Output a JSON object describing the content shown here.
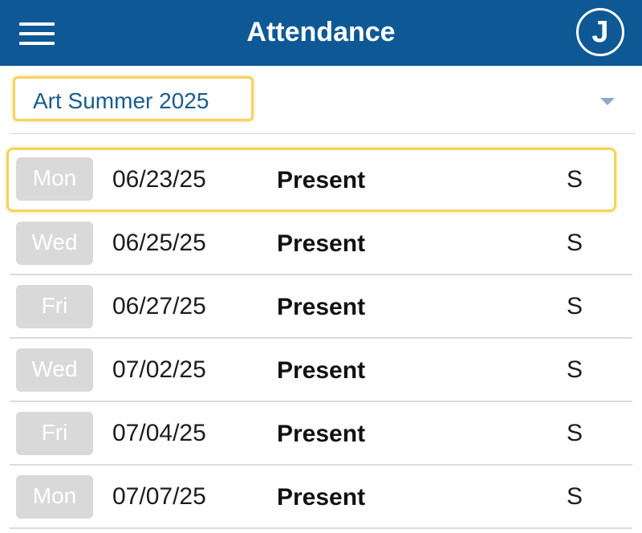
{
  "header": {
    "title": "Attendance",
    "avatar_initial": "J",
    "menu_icon": "hamburger-menu-icon",
    "background": "#0e5995"
  },
  "class_select": {
    "value": "Art Summer 2025",
    "arrow_icon": "caret-down-icon"
  },
  "records": [
    {
      "day": "Mon",
      "date": "06/23/25",
      "status": "Present",
      "code": "S",
      "selected": true
    },
    {
      "day": "Wed",
      "date": "06/25/25",
      "status": "Present",
      "code": "S"
    },
    {
      "day": "Fri",
      "date": "06/27/25",
      "status": "Present",
      "code": "S"
    },
    {
      "day": "Wed",
      "date": "07/02/25",
      "status": "Present",
      "code": "S"
    },
    {
      "day": "Fri",
      "date": "07/04/25",
      "status": "Present",
      "code": "S"
    },
    {
      "day": "Mon",
      "date": "07/07/25",
      "status": "Present",
      "code": "S"
    }
  ],
  "colors": {
    "highlight": "#f4d35e",
    "badge": "#d9d9d9",
    "select_text": "#1a5c8e"
  }
}
